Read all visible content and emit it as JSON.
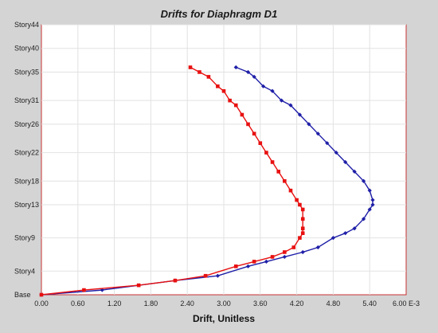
{
  "chart_data": {
    "type": "line",
    "title": "Drifts for Diaphragm D1",
    "xlabel": "Drift, Unitless",
    "ylabel": "",
    "x_unit_suffix": "E-3",
    "xlim": [
      0,
      6
    ],
    "x_ticks": [
      "0.00",
      "0.60",
      "1.20",
      "1.80",
      "2.40",
      "3.00",
      "3.60",
      "4.20",
      "4.80",
      "5.40",
      "6.00 E-3"
    ],
    "y_levels": {
      "Base": 0,
      "Story4": 4,
      "Story9": 9,
      "Story13": 13,
      "Story18": 18,
      "Story22": 22,
      "Story26": 26,
      "Story31": 31,
      "Story35": 35,
      "Story40": 40,
      "Story44": 44
    },
    "y_ticks": [
      "Base",
      "Story4",
      "Story9",
      "Story13",
      "Story18",
      "Story22",
      "Story26",
      "Story31",
      "Story35",
      "Story40",
      "Story44"
    ],
    "y_story_positions": [
      0,
      5,
      12,
      19,
      24,
      30,
      36,
      41,
      47,
      52,
      57
    ],
    "grid": true,
    "series": [
      {
        "color": "#1f1fa8",
        "marker": "diamond",
        "x": [
          0.0,
          1.0,
          2.2,
          2.9,
          3.4,
          3.7,
          4.0,
          4.3,
          4.55,
          4.8,
          5.0,
          5.15,
          5.3,
          5.4,
          5.45,
          5.45,
          5.4,
          5.3,
          5.15,
          5.0,
          4.85,
          4.7,
          4.55,
          4.4,
          4.25,
          4.1,
          3.95,
          3.8,
          3.65,
          3.5,
          3.4,
          3.2
        ],
        "y": [
          0,
          1,
          3,
          4,
          6,
          7,
          8,
          9,
          10,
          12,
          13,
          14,
          16,
          18,
          19,
          20,
          22,
          24,
          26,
          28,
          30,
          32,
          34,
          36,
          38,
          40,
          41,
          43,
          44,
          46,
          47,
          48
        ]
      },
      {
        "color": "#e81010",
        "marker": "square",
        "x": [
          0.0,
          0.7,
          1.6,
          2.2,
          2.7,
          3.2,
          3.5,
          3.8,
          4.0,
          4.15,
          4.25,
          4.3,
          4.3,
          4.3,
          4.3,
          4.25,
          4.2,
          4.1,
          4.0,
          3.9,
          3.8,
          3.7,
          3.6,
          3.5,
          3.4,
          3.3,
          3.2,
          3.1,
          3.0,
          2.9,
          2.75,
          2.6,
          2.45
        ],
        "y": [
          0,
          1,
          2,
          3,
          4,
          6,
          7,
          8,
          9,
          10,
          12,
          13,
          14,
          16,
          18,
          19,
          20,
          22,
          24,
          26,
          28,
          30,
          32,
          34,
          36,
          38,
          40,
          41,
          43,
          44,
          46,
          47,
          48
        ]
      }
    ]
  }
}
